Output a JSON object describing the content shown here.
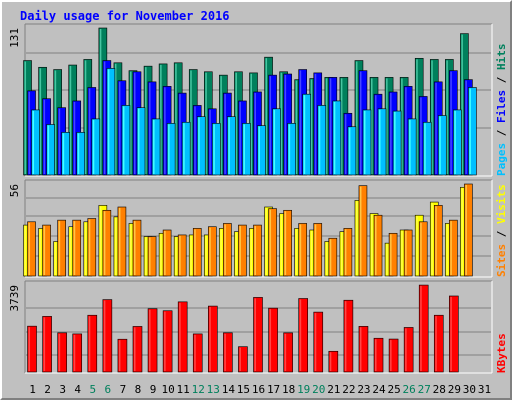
{
  "title": "Daily usage for November 2016",
  "colors": {
    "hits": "#00805c",
    "files": "#0000ff",
    "pages": "#00c0ff",
    "visits": "#ffff00",
    "sites": "#ff8000",
    "kbytes": "#ff0000",
    "background": "#c0c0c0",
    "panel": "#c0c0c0",
    "weekend_day": "#00805c",
    "weekday_day": "#000000"
  },
  "chart_data": [
    {
      "type": "bar",
      "title": "Daily usage for November 2016",
      "panel": "hits-files-pages",
      "ylabel_parts": [
        {
          "text": "Pages",
          "color": "#00c0ff"
        },
        {
          "text": " / ",
          "color": "#000000"
        },
        {
          "text": "Files",
          "color": "#0000ff"
        },
        {
          "text": " / ",
          "color": "#000000"
        },
        {
          "text": "Hits",
          "color": "#00805c"
        }
      ],
      "ymax_label": "131",
      "ylim": [
        0,
        131
      ],
      "categories": [
        "1",
        "2",
        "3",
        "4",
        "5",
        "6",
        "7",
        "8",
        "9",
        "10",
        "11",
        "12",
        "13",
        "14",
        "15",
        "16",
        "17",
        "18",
        "19",
        "20",
        "21",
        "22",
        "23",
        "24",
        "25",
        "26",
        "27",
        "28",
        "29",
        "30",
        "31"
      ],
      "series": [
        {
          "name": "Hits",
          "color": "#00805c",
          "values": [
            102,
            96,
            94,
            98,
            103,
            131,
            100,
            93,
            97,
            99,
            100,
            94,
            92,
            89,
            92,
            91,
            105,
            92,
            85,
            86,
            87,
            87,
            102,
            87,
            87,
            87,
            104,
            103,
            103,
            126,
            null
          ]
        },
        {
          "name": "Files",
          "color": "#0000ff",
          "values": [
            75,
            68,
            60,
            66,
            78,
            102,
            84,
            92,
            83,
            79,
            73,
            62,
            59,
            73,
            66,
            74,
            89,
            90,
            94,
            91,
            87,
            55,
            93,
            72,
            74,
            79,
            70,
            83,
            93,
            85,
            null
          ]
        },
        {
          "name": "Pages",
          "color": "#00c0ff",
          "values": [
            58,
            45,
            38,
            38,
            50,
            95,
            62,
            60,
            50,
            46,
            47,
            52,
            46,
            52,
            46,
            44,
            59,
            46,
            72,
            62,
            66,
            43,
            58,
            59,
            57,
            50,
            47,
            53,
            58,
            78,
            null
          ]
        }
      ]
    },
    {
      "type": "bar",
      "panel": "visits-sites",
      "ylabel_parts": [
        {
          "text": "Sites",
          "color": "#ff8000"
        },
        {
          "text": " / ",
          "color": "#000000"
        },
        {
          "text": "Visits",
          "color": "#ffff00"
        }
      ],
      "ymax_label": "56",
      "ylim": [
        0,
        56
      ],
      "categories": [
        "1",
        "2",
        "3",
        "4",
        "5",
        "6",
        "7",
        "8",
        "9",
        "10",
        "11",
        "12",
        "13",
        "14",
        "15",
        "16",
        "17",
        "18",
        "19",
        "20",
        "21",
        "22",
        "23",
        "24",
        "25",
        "26",
        "27",
        "28",
        "29",
        "30",
        "31"
      ],
      "series": [
        {
          "name": "Visits",
          "color": "#ffff00",
          "values": [
            31,
            29,
            21,
            30,
            33,
            43,
            36,
            32,
            24,
            26,
            24,
            25,
            25,
            29,
            27,
            29,
            42,
            38,
            29,
            28,
            21,
            27,
            46,
            38,
            20,
            28,
            37,
            45,
            32,
            54,
            null
          ]
        },
        {
          "name": "Sites",
          "color": "#ff8000",
          "values": [
            33,
            31,
            34,
            34,
            35,
            40,
            42,
            34,
            24,
            28,
            25,
            29,
            30,
            32,
            31,
            31,
            41,
            40,
            32,
            32,
            23,
            29,
            55,
            37,
            26,
            28,
            33,
            43,
            34,
            56,
            null
          ]
        }
      ]
    },
    {
      "type": "bar",
      "panel": "kbytes",
      "ylabel_parts": [
        {
          "text": "KBytes",
          "color": "#ff0000"
        }
      ],
      "ymax_label": "3739",
      "ylim": [
        0,
        3739
      ],
      "categories": [
        "1",
        "2",
        "3",
        "4",
        "5",
        "6",
        "7",
        "8",
        "9",
        "10",
        "11",
        "12",
        "13",
        "14",
        "15",
        "16",
        "17",
        "18",
        "19",
        "20",
        "21",
        "22",
        "23",
        "24",
        "25",
        "26",
        "27",
        "28",
        "29",
        "30",
        "31"
      ],
      "series": [
        {
          "name": "KBytes",
          "color": "#ff0000",
          "values": [
            1970,
            2390,
            1683,
            1637,
            2440,
            3112,
            1409,
            1958,
            2718,
            2633,
            3015,
            1637,
            2833,
            1683,
            1088,
            3206,
            2744,
            1681,
            3159,
            2574,
            891,
            3085,
            1962,
            1451,
            1416,
            1915,
            3736,
            2440,
            3267,
            null,
            null
          ]
        }
      ]
    }
  ],
  "x_axis": {
    "day_labels": [
      "1",
      "2",
      "3",
      "4",
      "5",
      "6",
      "7",
      "8",
      "9",
      "10",
      "11",
      "12",
      "13",
      "14",
      "15",
      "16",
      "17",
      "18",
      "19",
      "20",
      "21",
      "22",
      "23",
      "24",
      "25",
      "26",
      "27",
      "28",
      "29",
      "30",
      "31"
    ],
    "weekend_days": [
      5,
      6,
      12,
      13,
      19,
      20,
      26,
      27
    ]
  }
}
